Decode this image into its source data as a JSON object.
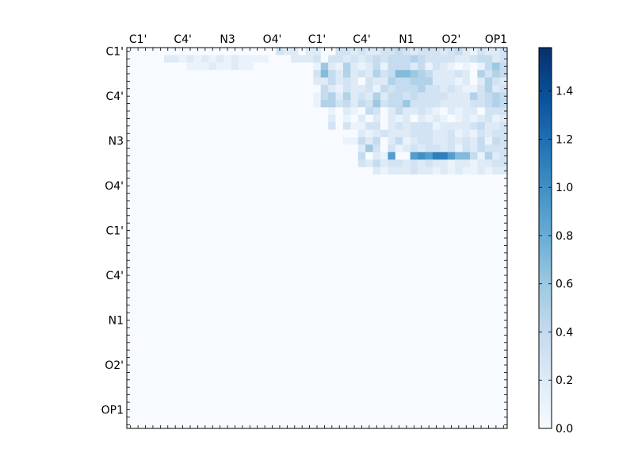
{
  "chart_data": {
    "type": "heatmap",
    "title": "",
    "xlabel": "",
    "ylabel": "",
    "x_tick_labels": [
      "C1'",
      "C4'",
      "N3",
      "O4'",
      "C1'",
      "C4'",
      "N1",
      "O2'",
      "OP1"
    ],
    "y_tick_labels": [
      "C1'",
      "C4'",
      "N3",
      "O4'",
      "C1'",
      "C4'",
      "N1",
      "O2'",
      "OP1"
    ],
    "x_tick_cells": [
      1,
      7,
      13,
      19,
      25,
      31,
      37,
      43,
      49
    ],
    "y_tick_cells": [
      0,
      6,
      12,
      18,
      24,
      30,
      36,
      42,
      48
    ],
    "n_rows": 51,
    "n_cols": 51,
    "colormap": "Blues",
    "colorbar": {
      "vmin": 0.0,
      "vmax": 1.58,
      "ticks": [
        "0.0",
        "0.2",
        "0.4",
        "0.6",
        "0.8",
        "1.0",
        "1.2",
        "1.4"
      ],
      "tick_values": [
        0.0,
        0.2,
        0.4,
        0.6,
        0.8,
        1.0,
        1.2,
        1.4
      ]
    },
    "values_encoding": "each row string: one character per cell; '0'-'9' and 'a'-'f' map to 0..15, value = code * 0.1",
    "rows": [
      "000000000000000000003220220033232233432333234213223",
      "000002212121212111100022230332323434445433332234423",
      "000000001112112110000000016215212414442413210101464",
      "000000000000000000000000037425232534776542223205354",
      "000000000000000000000000022423203225445552221202532",
      "000000000000000000000000004213223143444533232113523",
      "000000000000000000000000014525232524434333322253454",
      "000000000000000000000000015534243634463333222233454",
      "000000000000000000000000000102104302422321021220333",
      "000000000000000000000000000201020202120212101212312",
      "000000000000000000000000000303113302323331222234223",
      "000000000000000000000000000000021232223332231213233",
      "000000000000000000000000000001142402412332232324143",
      "000000000000000000000000000000026303123233231324333",
      "000000000000000000000000000000040219009a9bb977415234",
      "000000000000000000000000000000032423323232212212233",
      "000000000000000000000000000000000212223221212112122",
      "000000000000000000000000000000000000000000000000000",
      "000000000000000000000000000000000000000000000000000",
      "000000000000000000000000000000000000000000000000000",
      "000000000000000000000000000000000000000000000000000",
      "000000000000000000000000000000000000000000000000000",
      "000000000000000000000000000000000000000000000000000",
      "000000000000000000000000000000000000000000000000000",
      "000000000000000000000000000000000000000000000000000",
      "000000000000000000000000000000000000000000000000000",
      "000000000000000000000000000000000000000000000000000",
      "000000000000000000000000000000000000000000000000000",
      "000000000000000000000000000000000000000000000000000",
      "000000000000000000000000000000000000000000000000000",
      "000000000000000000000000000000000000000000000000000",
      "000000000000000000000000000000000000000000000000000",
      "000000000000000000000000000000000000000000000000000",
      "000000000000000000000000000000000000000000000000000",
      "000000000000000000000000000000000000000000000000000",
      "000000000000000000000000000000000000000000000000000",
      "000000000000000000000000000000000000000000000000000",
      "000000000000000000000000000000000000000000000000000",
      "000000000000000000000000000000000000000000000000000",
      "000000000000000000000000000000000000000000000000000",
      "000000000000000000000000000000000000000000000000000",
      "000000000000000000000000000000000000000000000000000",
      "000000000000000000000000000000000000000000000000000",
      "000000000000000000000000000000000000000000000000000",
      "000000000000000000000000000000000000000000000000000",
      "000000000000000000000000000000000000000000000000000",
      "000000000000000000000000000000000000000000000000000",
      "000000000000000000000000000000000000000000000000000",
      "000000000000000000000000000000000000000000000000000",
      "000000000000000000000000000000000000000000000000000",
      "000000000000000000000000000000000000000000000000000"
    ]
  }
}
